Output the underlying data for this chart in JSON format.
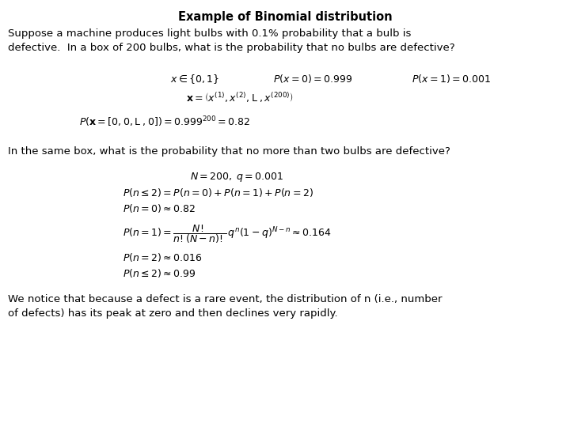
{
  "title": "Example of Binomial distribution",
  "background_color": "#ffffff",
  "text_color": "#000000",
  "title_fontsize": 10.5,
  "body_fontsize": 9.5,
  "math_fontsize": 9.0,
  "para1": "Suppose a machine produces light bulbs with 0.1% probability that a bulb is\ndefective.  In a box of 200 bulbs, what is the probability that no bulbs are defective?",
  "math1a": "$x \\in \\{0,1\\}$",
  "math1b": "$P(x=0)=0.999$",
  "math1c": "$P(x=1)=0.001$",
  "math2": "$\\mathbf{x} = \\left(x^{(1)}, x^{(2)}, \\mathrm{L}\\;, x^{(200)}\\right)$",
  "math3": "$P\\left(\\mathbf{x} = [0, 0, \\mathrm{L}\\;, 0]\\right) = 0.999^{200} = 0.82$",
  "para2": "In the same box, what is the probability that no more than two bulbs are defective?",
  "math4": "$N = 200,\\; q = 0.001$",
  "math5": "$P(n \\leq 2) = P(n=0) + P(n=1) + P(n=2)$",
  "math6": "$P(n=0) \\approx 0.82$",
  "math7": "$P(n=1) = \\dfrac{N!}{n!(N-n)!}\\, q^{n}\\left(1-q\\right)^{N-n} \\approx 0.164$",
  "math8": "$P(n=2) \\approx 0.016$",
  "math9": "$P(n \\leq 2) \\approx 0.99$",
  "para3": "We notice that because a defect is a rare event, the distribution of n (i.e., number\nof defects) has its peak at zero and then declines very rapidly."
}
